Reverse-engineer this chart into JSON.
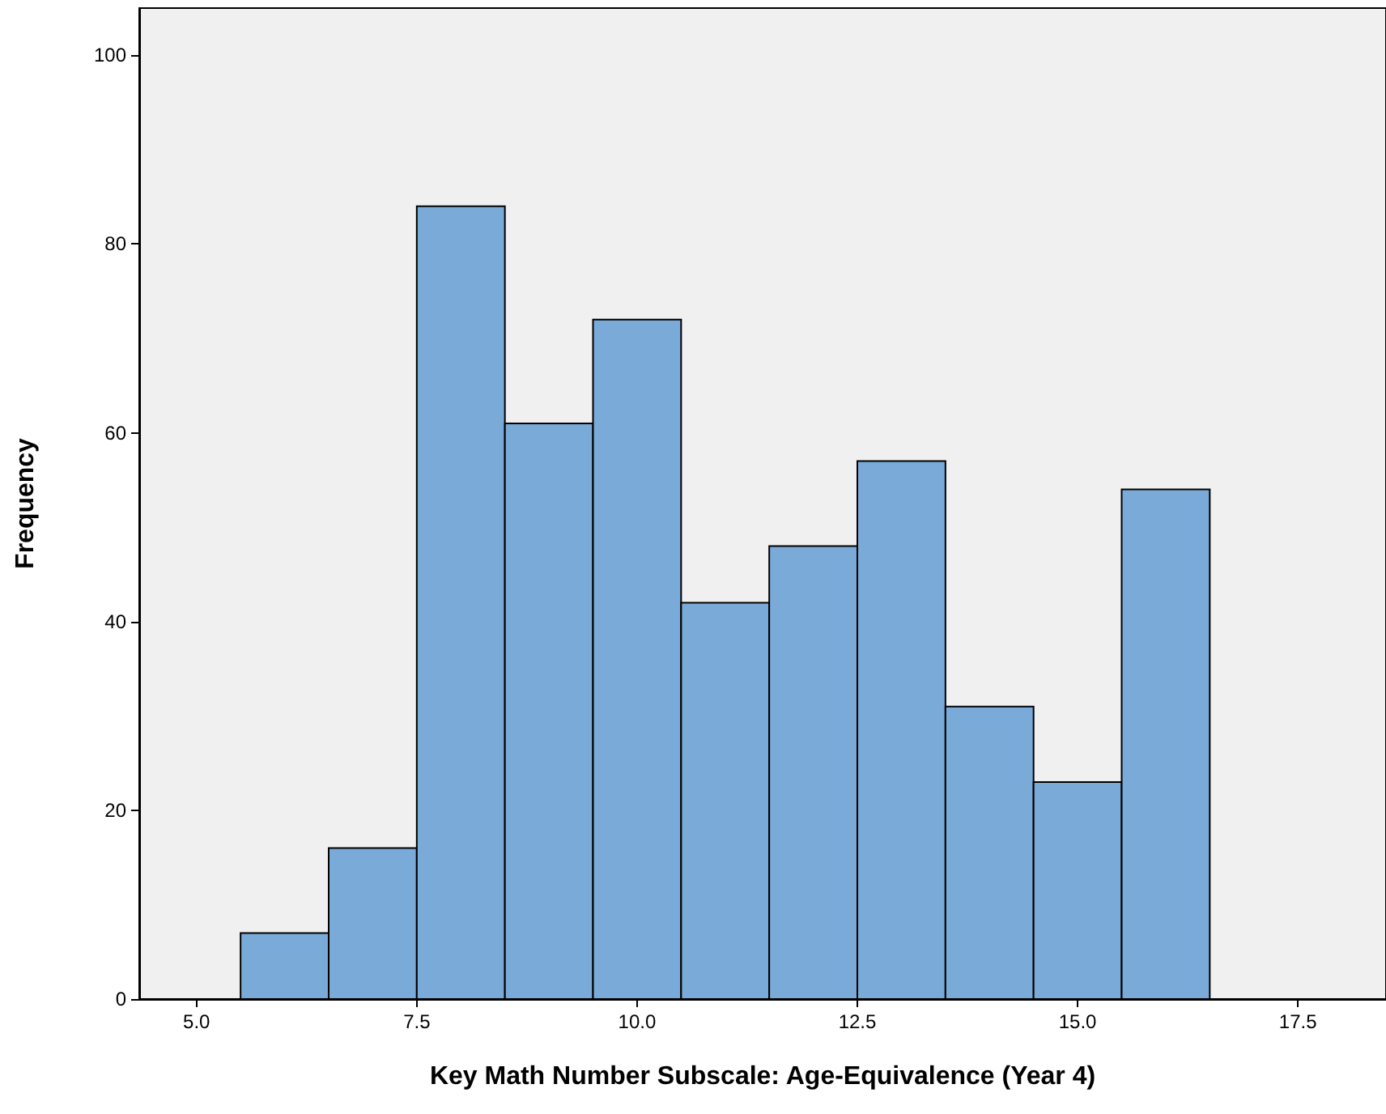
{
  "chart_data": {
    "type": "histogram",
    "xlabel": "Key Math Number Subscale: Age-Equivalence (Year 4)",
    "ylabel": "Frequency",
    "bins": [
      5.5,
      6.5,
      7.5,
      8.5,
      9.5,
      10.5,
      11.5,
      12.5,
      13.5,
      14.5,
      15.5,
      16.5
    ],
    "values": [
      7,
      16,
      84,
      61,
      72,
      42,
      48,
      57,
      31,
      23,
      54
    ],
    "color": "#7aaad8",
    "xlim": [
      4.35,
      18.5
    ],
    "xticks": [
      {
        "value": 5,
        "label": "5.0"
      },
      {
        "value": 7.5,
        "label": "7.5"
      },
      {
        "value": 10,
        "label": "10.0"
      },
      {
        "value": 12.5,
        "label": "12.5"
      },
      {
        "value": 15,
        "label": "15.0"
      },
      {
        "value": 17.5,
        "label": "17.5"
      }
    ],
    "ylim": [
      0,
      105
    ],
    "yticks": [
      0,
      20,
      40,
      60,
      80,
      100
    ],
    "grid": false
  }
}
